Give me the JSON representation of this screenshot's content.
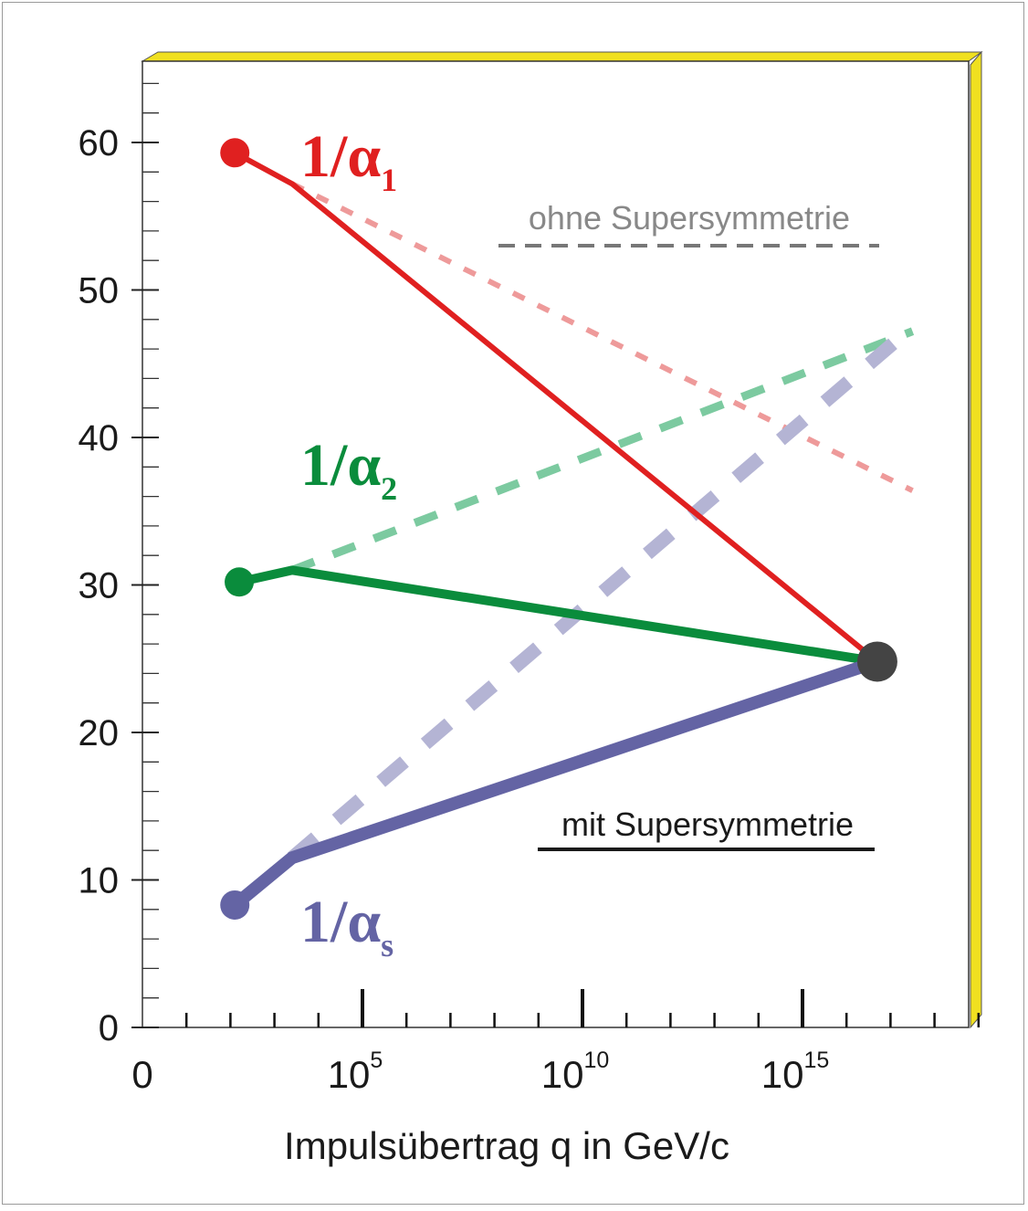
{
  "chart_data": {
    "type": "line",
    "xlabel": "Impulsübertrag q in GeV/c",
    "x_scale": "log",
    "x_ticks": [
      {
        "value": 1,
        "base": "0",
        "exp": ""
      },
      {
        "value": 100000,
        "base": "10",
        "exp": "5"
      },
      {
        "value": 10000000000,
        "base": "10",
        "exp": "10"
      },
      {
        "value": 1000000000000000,
        "base": "10",
        "exp": "15"
      }
    ],
    "xlim_log10": [
      0,
      19.5
    ],
    "y_ticks": [
      "0",
      "10",
      "20",
      "30",
      "40",
      "50",
      "60"
    ],
    "ylim": [
      0,
      65
    ],
    "legend": {
      "without": "ohne Supersymmetrie",
      "with": "mit Supersymmetrie"
    },
    "series": [
      {
        "label_main": "1/α",
        "label_sub": "1",
        "color": "#e02020",
        "dashed_color": "#ee9a9a",
        "start": [
          2.1,
          59.3
        ],
        "with_susy": [
          [
            2.1,
            59.3
          ],
          [
            3.4,
            57.2
          ],
          [
            16.7,
            24.8
          ]
        ],
        "without_susy": [
          [
            3.4,
            57.2
          ],
          [
            17.5,
            36.4
          ]
        ]
      },
      {
        "label_main": "1/α",
        "label_sub": "2",
        "color": "#0a8c3c",
        "dashed_color": "#7ccaa0",
        "start": [
          2.2,
          30.2
        ],
        "with_susy": [
          [
            2.2,
            30.2
          ],
          [
            3.4,
            31.0
          ],
          [
            16.7,
            24.8
          ]
        ],
        "without_susy": [
          [
            3.4,
            31.0
          ],
          [
            17.5,
            47.2
          ]
        ]
      },
      {
        "label_main": "1/α",
        "label_sub": "s",
        "color": "#6464a4",
        "dashed_color": "#b4b4d4",
        "start": [
          2.1,
          8.3
        ],
        "with_susy": [
          [
            2.1,
            8.3
          ],
          [
            3.4,
            11.5
          ],
          [
            16.7,
            24.8
          ]
        ],
        "without_susy": [
          [
            3.4,
            11.5
          ],
          [
            17.5,
            47.5
          ]
        ]
      }
    ],
    "unification_point": [
      16.7,
      24.8
    ],
    "colors": {
      "frame_shadow": "#f0e020",
      "unification": "#444444",
      "legend_without": "#888888",
      "legend_with": "#1a1a1a"
    }
  }
}
